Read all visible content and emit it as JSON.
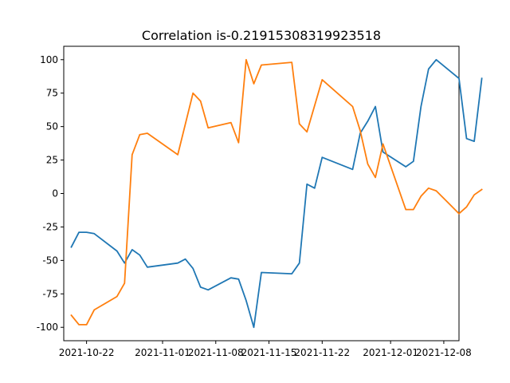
{
  "chart_data": {
    "type": "line",
    "title": "Correlation is-0.21915308319923518",
    "xlabel": "",
    "ylabel": "",
    "x_ticks": [
      "2021-10-22",
      "2021-11-01",
      "2021-11-08",
      "2021-11-15",
      "2021-11-22",
      "2021-12-01",
      "2021-12-08"
    ],
    "x_tick_dates": [
      "2021-10-22",
      "2021-11-01",
      "2021-11-08",
      "2021-11-15",
      "2021-11-22",
      "2021-12-01",
      "2021-12-08"
    ],
    "y_ticks": [
      "-100",
      "-75",
      "-50",
      "-25",
      "0",
      "25",
      "50",
      "75",
      "100"
    ],
    "ylim": [
      -110,
      110
    ],
    "xlim": [
      "2021-10-19",
      "2021-12-10"
    ],
    "grid": false,
    "series": [
      {
        "color": "#1f77b4",
        "points": [
          [
            "2021-10-20",
            -40
          ],
          [
            "2021-10-21",
            -29
          ],
          [
            "2021-10-22",
            -29
          ],
          [
            "2021-10-23",
            -30
          ],
          [
            "2021-10-26",
            -43
          ],
          [
            "2021-10-27",
            -52
          ],
          [
            "2021-10-28",
            -42
          ],
          [
            "2021-10-29",
            -46
          ],
          [
            "2021-10-30",
            -55
          ],
          [
            "2021-11-03",
            -52
          ],
          [
            "2021-11-04",
            -49
          ],
          [
            "2021-11-05",
            -56
          ],
          [
            "2021-11-06",
            -70
          ],
          [
            "2021-11-07",
            -72
          ],
          [
            "2021-11-10",
            -63
          ],
          [
            "2021-11-11",
            -64
          ],
          [
            "2021-11-12",
            -80
          ],
          [
            "2021-11-13",
            -100
          ],
          [
            "2021-11-14",
            -59
          ],
          [
            "2021-11-18",
            -60
          ],
          [
            "2021-11-19",
            -52
          ],
          [
            "2021-11-20",
            7
          ],
          [
            "2021-11-21",
            4
          ],
          [
            "2021-11-22",
            27
          ],
          [
            "2021-11-26",
            18
          ],
          [
            "2021-11-27",
            45
          ],
          [
            "2021-11-28",
            54
          ],
          [
            "2021-11-29",
            65
          ],
          [
            "2021-11-30",
            31
          ],
          [
            "2021-12-03",
            20
          ],
          [
            "2021-12-04",
            24
          ],
          [
            "2021-12-05",
            65
          ],
          [
            "2021-12-06",
            93
          ],
          [
            "2021-12-07",
            100
          ],
          [
            "2021-12-10",
            86
          ],
          [
            "2021-12-11",
            41
          ],
          [
            "2021-12-12",
            39
          ],
          [
            "2021-12-13",
            86
          ]
        ]
      },
      {
        "color": "#ff7f0e",
        "points": [
          [
            "2021-10-20",
            -91
          ],
          [
            "2021-10-21",
            -98
          ],
          [
            "2021-10-22",
            -98
          ],
          [
            "2021-10-23",
            -87
          ],
          [
            "2021-10-26",
            -77
          ],
          [
            "2021-10-27",
            -67
          ],
          [
            "2021-10-28",
            29
          ],
          [
            "2021-10-29",
            44
          ],
          [
            "2021-10-30",
            45
          ],
          [
            "2021-11-03",
            29
          ],
          [
            "2021-11-05",
            75
          ],
          [
            "2021-11-06",
            69
          ],
          [
            "2021-11-07",
            49
          ],
          [
            "2021-11-10",
            53
          ],
          [
            "2021-11-11",
            38
          ],
          [
            "2021-11-12",
            100
          ],
          [
            "2021-11-13",
            82
          ],
          [
            "2021-11-14",
            96
          ],
          [
            "2021-11-18",
            98
          ],
          [
            "2021-11-19",
            52
          ],
          [
            "2021-11-20",
            46
          ],
          [
            "2021-11-22",
            85
          ],
          [
            "2021-11-26",
            65
          ],
          [
            "2021-11-27",
            47
          ],
          [
            "2021-11-28",
            22
          ],
          [
            "2021-11-29",
            12
          ],
          [
            "2021-11-30",
            37
          ],
          [
            "2021-12-03",
            -12
          ],
          [
            "2021-12-04",
            -12
          ],
          [
            "2021-12-05",
            -2
          ],
          [
            "2021-12-06",
            4
          ],
          [
            "2021-12-07",
            2
          ],
          [
            "2021-12-10",
            -15
          ],
          [
            "2021-12-11",
            -10
          ],
          [
            "2021-12-12",
            -1
          ],
          [
            "2021-12-13",
            3
          ]
        ]
      }
    ]
  }
}
